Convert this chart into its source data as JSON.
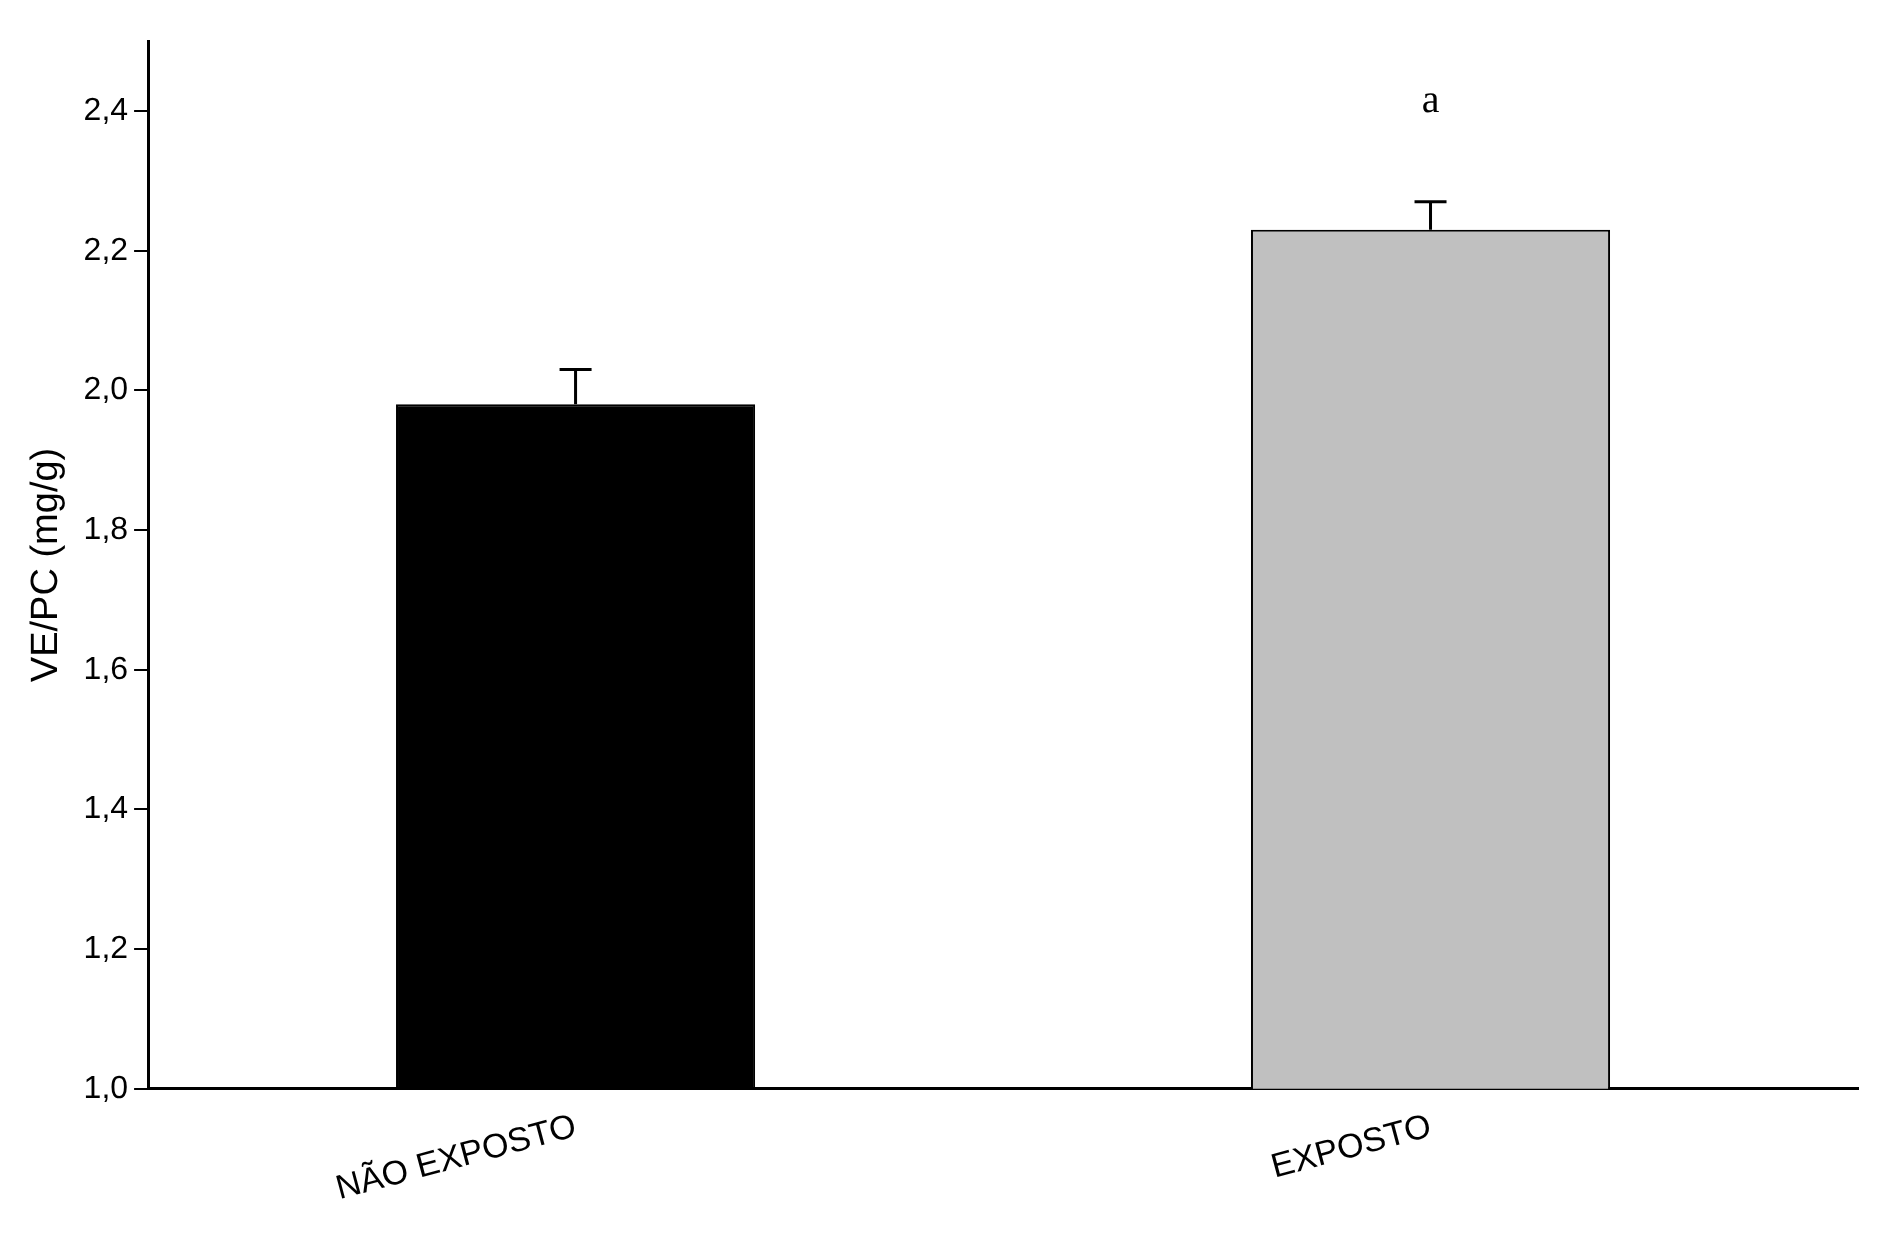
{
  "chart_data": {
    "type": "bar",
    "ylabel": "VE/PC (mg/g)",
    "categories": [
      "NÃO EXPOSTO",
      "EXPOSTO"
    ],
    "values": [
      1.98,
      2.23
    ],
    "colors": [
      "#000000",
      "#c0c0c0"
    ],
    "errors": [
      [
        1.98,
        2.03
      ],
      [
        2.23,
        2.27
      ]
    ],
    "ylim": [
      1.0,
      2.5
    ],
    "yticks": [
      {
        "value": 1.0,
        "label": "1,0"
      },
      {
        "value": 1.2,
        "label": "1,2"
      },
      {
        "value": 1.4,
        "label": "1,4"
      },
      {
        "value": 1.6,
        "label": "1,6"
      },
      {
        "value": 1.8,
        "label": "1,8"
      },
      {
        "value": 2.0,
        "label": "2,0"
      },
      {
        "value": 2.2,
        "label": "2,2"
      },
      {
        "value": 2.4,
        "label": "2,4"
      }
    ],
    "annotations": [
      "a"
    ],
    "grid": false,
    "legend": false
  }
}
